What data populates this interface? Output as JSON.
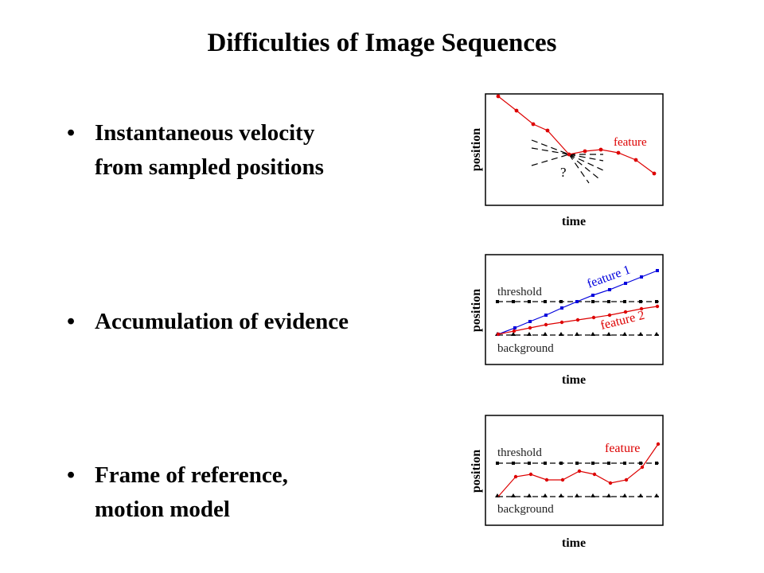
{
  "slide": {
    "title": "Difficulties of Image Sequences",
    "bullet_symbol": "•",
    "bullets": [
      {
        "line1": "Instantaneous velocity",
        "line2": "from sampled positions"
      },
      {
        "line1": "Accumulation of evidence",
        "line2": ""
      },
      {
        "line1": "Frame of reference,",
        "line2": "motion model"
      }
    ]
  },
  "diagrams": [
    {
      "ylabel": "position",
      "xlabel": "time",
      "feature_label": "feature",
      "question_mark": "?",
      "feature_color": "#dd0000"
    },
    {
      "ylabel": "position",
      "xlabel": "time",
      "threshold_label": "threshold",
      "background_label": "background",
      "feature1_label": "feature 1",
      "feature2_label": "feature 2",
      "feature1_color": "#0000dd",
      "feature2_color": "#dd0000"
    },
    {
      "ylabel": "position",
      "xlabel": "time",
      "threshold_label": "threshold",
      "background_label": "background",
      "feature_label": "feature",
      "feature_color": "#dd0000"
    }
  ]
}
